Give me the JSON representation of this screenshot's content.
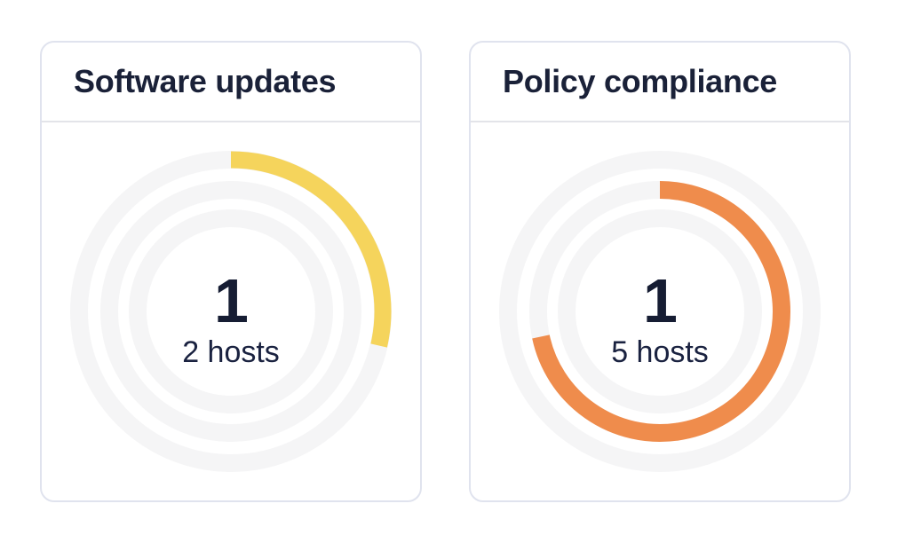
{
  "page": {
    "background": "#ffffff"
  },
  "theme": {
    "card_border": "#e0e3ee",
    "header_divider": "#e3e4e9",
    "navy_text": "#1a2138",
    "track_gray": "#f5f5f6"
  },
  "chart_data": [
    {
      "type": "donut",
      "title": "Software updates",
      "center_value": "1",
      "center_label": "2 hosts",
      "rings_radii": [
        171,
        137,
        105
      ],
      "track_color": "#f5f5f6",
      "track_stroke_width": 20,
      "arc": {
        "ring_index": 0,
        "start_deg": 0,
        "end_deg": 103,
        "color": "#f5d45c",
        "stroke_width": 19
      }
    },
    {
      "type": "donut",
      "title": "Policy compliance",
      "center_value": "1",
      "center_label": "5 hosts",
      "rings_radii": [
        171,
        137,
        105
      ],
      "track_color": "#f5f5f6",
      "track_stroke_width": 20,
      "arc": {
        "ring_index": 1,
        "start_deg": 0,
        "end_deg": 258,
        "color": "#ef8c4c",
        "stroke_width": 20
      }
    }
  ]
}
